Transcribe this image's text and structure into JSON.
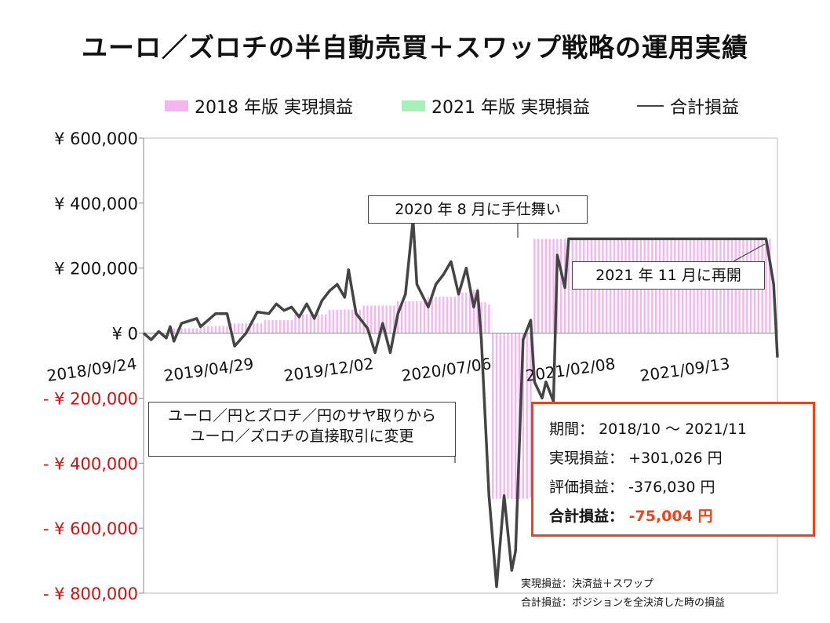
{
  "chart_data": {
    "type": "bar+line",
    "title": "ユーロ／ズロチの半自動売買＋スワップ戦略の運用実績",
    "legend": [
      "2018 年版 実現損益",
      "2021 年版 実現損益",
      "合計損益"
    ],
    "legend_position": "top",
    "ylim": [
      -800000,
      600000
    ],
    "yticks": [
      600000,
      400000,
      200000,
      0,
      -200000,
      -400000,
      -600000,
      -800000
    ],
    "ytick_labels": [
      "¥ 600,000",
      "¥ 400,000",
      "¥ 200,000",
      "¥ 0",
      "- ¥ 200,000",
      "- ¥ 400,000",
      "- ¥ 600,000",
      "- ¥ 800,000"
    ],
    "x_start": "2018/09/24",
    "x_end": "2021/12/06",
    "xtick_labels": [
      "2018/09/24",
      "2019/04/29",
      "2019/12/02",
      "2020/07/06",
      "2021/02/08",
      "2021/09/13"
    ],
    "grid": false,
    "series": [
      {
        "name": "2018 年版 実現損益",
        "color": "#f4b6f0",
        "points": [
          [
            "2018/10/15",
            0
          ],
          [
            "2018/11/19",
            15000
          ],
          [
            "2019/01/07",
            22000
          ],
          [
            "2019/03/04",
            30000
          ],
          [
            "2019/05/06",
            40000
          ],
          [
            "2019/07/01",
            58000
          ],
          [
            "2019/09/02",
            72000
          ],
          [
            "2019/11/04",
            85000
          ],
          [
            "2020/01/06",
            98000
          ],
          [
            "2020/03/02",
            112000
          ],
          [
            "2020/04/27",
            125000
          ],
          [
            "2020/05/25",
            132000
          ],
          [
            "2020/06/01",
            138000
          ],
          [
            "2020/06/08",
            95000
          ],
          [
            "2020/06/22",
            88000
          ],
          [
            "2020/06/29",
            -510000
          ],
          [
            "2020/09/07",
            -505000
          ],
          [
            "2020/09/14",
            290000
          ],
          [
            "2021/11/22",
            290000
          ]
        ]
      },
      {
        "name": "2021 年版 実現損益",
        "color": "#a8f0b8",
        "points": [
          [
            "2021/11/22",
            3000
          ],
          [
            "2021/12/06",
            11026
          ]
        ]
      },
      {
        "name": "合計損益",
        "color": "#444444",
        "points": [
          [
            "2018/09/24",
            0
          ],
          [
            "2018/10/08",
            -20000
          ],
          [
            "2018/10/22",
            5000
          ],
          [
            "2018/11/05",
            -15000
          ],
          [
            "2018/11/12",
            20000
          ],
          [
            "2018/11/19",
            -25000
          ],
          [
            "2018/12/03",
            30000
          ],
          [
            "2018/12/31",
            45000
          ],
          [
            "2019/01/07",
            20000
          ],
          [
            "2019/02/04",
            60000
          ],
          [
            "2019/02/25",
            60000
          ],
          [
            "2019/03/11",
            -40000
          ],
          [
            "2019/04/01",
            0
          ],
          [
            "2019/04/22",
            65000
          ],
          [
            "2019/05/13",
            60000
          ],
          [
            "2019/05/27",
            90000
          ],
          [
            "2019/06/10",
            70000
          ],
          [
            "2019/06/24",
            80000
          ],
          [
            "2019/07/08",
            50000
          ],
          [
            "2019/07/22",
            90000
          ],
          [
            "2019/08/05",
            45000
          ],
          [
            "2019/08/19",
            100000
          ],
          [
            "2019/09/02",
            130000
          ],
          [
            "2019/09/16",
            150000
          ],
          [
            "2019/09/30",
            110000
          ],
          [
            "2019/10/07",
            195000
          ],
          [
            "2019/10/21",
            60000
          ],
          [
            "2019/11/11",
            15000
          ],
          [
            "2019/11/25",
            -60000
          ],
          [
            "2019/12/09",
            30000
          ],
          [
            "2019/12/23",
            -60000
          ],
          [
            "2020/01/06",
            60000
          ],
          [
            "2020/01/20",
            120000
          ],
          [
            "2020/02/03",
            350000
          ],
          [
            "2020/02/10",
            150000
          ],
          [
            "2020/03/02",
            80000
          ],
          [
            "2020/03/16",
            150000
          ],
          [
            "2020/03/30",
            180000
          ],
          [
            "2020/04/13",
            220000
          ],
          [
            "2020/04/27",
            120000
          ],
          [
            "2020/05/11",
            200000
          ],
          [
            "2020/05/25",
            80000
          ],
          [
            "2020/06/01",
            130000
          ],
          [
            "2020/06/08",
            -20000
          ],
          [
            "2020/06/22",
            -500000
          ],
          [
            "2020/07/06",
            -780000
          ],
          [
            "2020/07/20",
            -500000
          ],
          [
            "2020/08/03",
            -730000
          ],
          [
            "2020/08/10",
            -670000
          ],
          [
            "2020/08/24",
            -20000
          ],
          [
            "2020/09/07",
            40000
          ],
          [
            "2020/09/14",
            -150000
          ],
          [
            "2020/09/28",
            -200000
          ],
          [
            "2020/10/05",
            -150000
          ],
          [
            "2020/10/19",
            -210000
          ],
          [
            "2020/10/26",
            240000
          ],
          [
            "2020/11/09",
            140000
          ],
          [
            "2020/11/16",
            290000
          ],
          [
            "2021/11/15",
            290000
          ],
          [
            "2021/11/29",
            150000
          ],
          [
            "2021/12/06",
            -75004
          ]
        ]
      }
    ],
    "annotations": [
      "2020 年 8 月に手仕舞い",
      "2021 年 11 月に再開",
      "ユーロ／円とズロチ／円のサヤ取りから\nユーロ／ズロチの直接取引に変更"
    ]
  },
  "summary": {
    "period_label": "期間：",
    "period_value": "2018/10 ～ 2021/11",
    "realized_label": "実現損益：",
    "realized_value": "+301,026 円",
    "unrealized_label": "評価損益：",
    "unrealized_value": "-376,030 円",
    "total_label": "合計損益：",
    "total_value": "-75,004 円"
  },
  "notes": {
    "realized_def": "実現損益：決済益＋スワップ",
    "total_def": "合計損益：ポジションを全決済した時の損益"
  },
  "colors": {
    "accent_red": "#e8471e",
    "negative_label": "#d01010",
    "axis": "#888888"
  }
}
